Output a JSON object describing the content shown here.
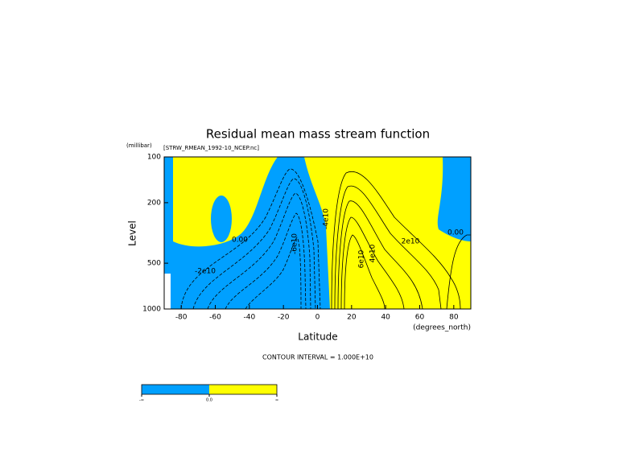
{
  "chart_data": {
    "type": "contour",
    "title": "Residual mean mass stream function",
    "subtitle": "[STRW_RMEAN_1992-10_NCEP.nc]",
    "y_unit": "(millibar)",
    "x_unit": "(degrees_north)",
    "x_label": "Latitude",
    "y_label": "Level",
    "footnote": "CONTOUR INTERVAL = 1.000E+10",
    "xlim": [
      -90,
      90
    ],
    "xticks": [
      -80,
      -60,
      -40,
      -20,
      0,
      20,
      40,
      60,
      80
    ],
    "ylim": [
      100,
      1000
    ],
    "yticks": [
      100,
      200,
      500,
      1000
    ],
    "y_scale": "log",
    "y_inverted": true,
    "negative_color": "#00a0ff",
    "positive_color": "#ffff00",
    "contour_labels": [
      "0.00",
      "-2e10",
      "-6e10",
      "-4e10",
      "2e10",
      "4e10",
      "6e10",
      "0.00"
    ],
    "colorbar_labels": [
      "-∞",
      "0.0",
      "∞"
    ]
  }
}
